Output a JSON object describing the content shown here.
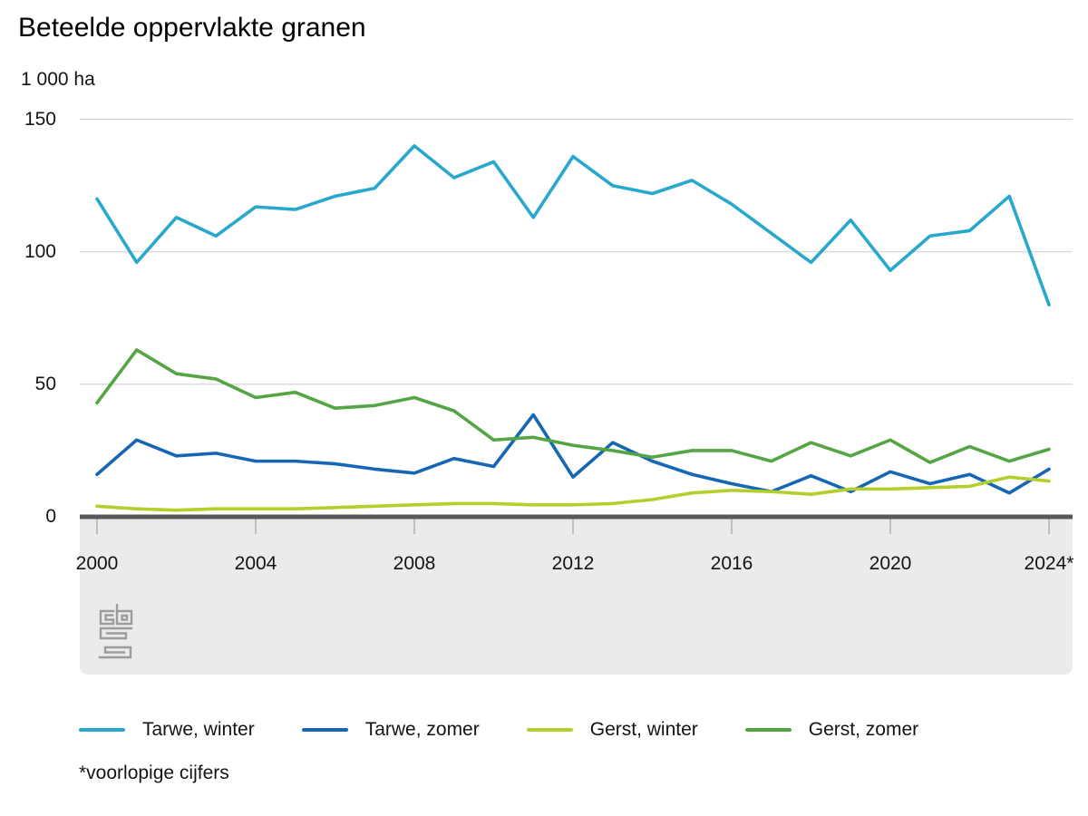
{
  "header": {
    "title": "Beteelde oppervlakte granen",
    "unit_label": "1 000 ha"
  },
  "footnote": "*voorlopige cijfers",
  "logo": "cbs-logo",
  "colors": {
    "grid": "#cbcbcb",
    "zero_axis": "#58585a",
    "panel": "#ebebeb",
    "tick": "#b0b0b0",
    "logo": "#9c9c9c"
  },
  "chart_data": {
    "type": "line",
    "title": "Beteelde oppervlakte granen",
    "ylabel": "1 000 ha",
    "xlabel": "",
    "grid": "horizontal",
    "legend_position": "bottom",
    "ylim": [
      0,
      150
    ],
    "y_ticks": [
      0,
      50,
      100,
      150
    ],
    "x": [
      2000,
      2001,
      2002,
      2003,
      2004,
      2005,
      2006,
      2007,
      2008,
      2009,
      2010,
      2011,
      2012,
      2013,
      2014,
      2015,
      2016,
      2017,
      2018,
      2019,
      2020,
      2021,
      2022,
      2023,
      2024
    ],
    "x_tick_labels": [
      "2000",
      "2004",
      "2008",
      "2012",
      "2016",
      "2020",
      "2024*"
    ],
    "series": [
      {
        "name": "Tarwe, winter",
        "color": "#29a8cd",
        "values": [
          120,
          96,
          113,
          106,
          117,
          116,
          121,
          124,
          140,
          128,
          134,
          113,
          136,
          125,
          122,
          127,
          118,
          107,
          96,
          112,
          93,
          106,
          108,
          121,
          80
        ]
      },
      {
        "name": "Tarwe, zomer",
        "color": "#1566b4",
        "values": [
          16,
          29,
          23,
          24,
          21,
          21,
          20,
          18,
          16.5,
          22,
          19,
          38.5,
          15,
          28,
          21,
          16,
          12.5,
          9.5,
          15.5,
          9.5,
          17,
          12.5,
          16,
          9,
          18
        ]
      },
      {
        "name": "Gerst, winter",
        "color": "#b4cf2b",
        "values": [
          4,
          3,
          2.5,
          3,
          3,
          3,
          3.5,
          4,
          4.5,
          5,
          5,
          4.5,
          4.5,
          5,
          6.5,
          9,
          10,
          9.5,
          8.5,
          10.5,
          10.5,
          11,
          11.5,
          15,
          13.5
        ]
      },
      {
        "name": "Gerst, zomer",
        "color": "#55a545",
        "values": [
          43,
          63,
          54,
          52,
          45,
          47,
          41,
          42,
          45,
          40,
          29,
          30,
          27,
          25,
          22.5,
          25,
          25,
          21,
          28,
          23,
          29,
          20.5,
          26.5,
          21,
          25.5
        ]
      }
    ]
  }
}
